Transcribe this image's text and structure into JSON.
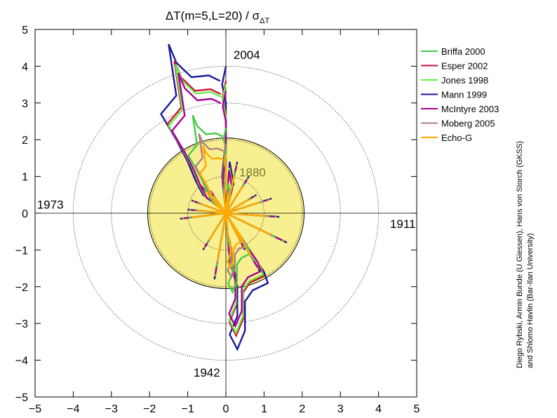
{
  "chart_data": {
    "type": "line",
    "subtype": "polar-radial-plot",
    "title": "ΔT(m=5,L=20) / σ",
    "title_subscript": "ΔT",
    "xlim": [
      -5,
      5
    ],
    "ylim": [
      -5,
      5
    ],
    "xticks": [
      "−5",
      "−4",
      "−3",
      "−2",
      "−1",
      "0",
      "1",
      "2",
      "3",
      "4",
      "5"
    ],
    "yticks": [
      "5",
      "4",
      "3",
      "2",
      "1",
      "0",
      "−1",
      "−2",
      "−3",
      "−4",
      "−5"
    ],
    "reference_circles": [
      1,
      2,
      3,
      4
    ],
    "significance_disc_radius": 2.05,
    "year_labels": [
      {
        "text": "2004",
        "direction": "top"
      },
      {
        "text": "1911",
        "direction": "right"
      },
      {
        "text": "1942",
        "direction": "bottom"
      },
      {
        "text": "1973",
        "direction": "left"
      },
      {
        "text": "1880",
        "direction": "inner"
      }
    ],
    "series": [
      {
        "name": "Briffa 2000",
        "color": "#44cc44",
        "scale": 0.58
      },
      {
        "name": "Esper 2002",
        "color": "#cc1133",
        "scale": 0.9
      },
      {
        "name": "Jones 1998",
        "color": "#66ee44",
        "scale": 0.88
      },
      {
        "name": "Mann 1999",
        "color": "#1a1a99",
        "scale": 1.0
      },
      {
        "name": "McIntyre 2003",
        "color": "#aa0099",
        "scale": 0.83
      },
      {
        "name": "Moberg 2005",
        "color": "#b08080",
        "scale": 0.47
      },
      {
        "name": "Echo-G",
        "color": "#ffaa00",
        "scale": 0.4
      }
    ],
    "envelope": [
      [
        -0.15,
        3.6
      ],
      [
        -0.45,
        3.75
      ],
      [
        -0.9,
        3.7
      ],
      [
        -1.3,
        4.1
      ],
      [
        -1.5,
        4.6
      ],
      [
        -1.4,
        3.9
      ],
      [
        -1.3,
        3.2
      ],
      [
        -1.7,
        2.7
      ],
      [
        -1.3,
        2.0
      ],
      [
        -1.0,
        1.4
      ],
      [
        -0.8,
        0.9
      ],
      [
        -0.6,
        0.5
      ],
      [
        -0.2,
        0.2
      ],
      [
        0,
        0
      ],
      [
        0.05,
        -0.6
      ],
      [
        0.1,
        -1.3
      ],
      [
        0.3,
        -2.0
      ],
      [
        0.3,
        -2.8
      ],
      [
        0.1,
        -3.3
      ],
      [
        0.3,
        -3.7
      ],
      [
        0.5,
        -3.2
      ],
      [
        0.5,
        -2.4
      ],
      [
        0.7,
        -2.1
      ],
      [
        1.1,
        -1.9
      ],
      [
        1.0,
        -1.6
      ],
      [
        0.3,
        -0.5
      ],
      [
        0,
        0
      ],
      [
        0.2,
        0.8
      ],
      [
        0.1,
        1.4
      ],
      [
        0,
        0
      ],
      [
        -0.1,
        1.0
      ],
      [
        0.0,
        2.0
      ],
      [
        0.0,
        3.0
      ],
      [
        -0.1,
        3.5
      ],
      [
        0.0,
        4.0
      ]
    ],
    "spikes": [
      [
        0.3,
        1.4
      ],
      [
        -0.7,
        0.8
      ],
      [
        1.4,
        -0.1
      ],
      [
        1.6,
        -0.8
      ],
      [
        -1.2,
        -0.15
      ],
      [
        -0.9,
        0.35
      ],
      [
        0.8,
        0.5
      ],
      [
        -0.6,
        -1.0
      ],
      [
        0.9,
        -1.6
      ],
      [
        -0.3,
        -1.8
      ],
      [
        1.2,
        0.4
      ],
      [
        -1.0,
        0.1
      ],
      [
        0.5,
        -1.0
      ],
      [
        -0.4,
        0.6
      ],
      [
        0.6,
        1.0
      ]
    ],
    "legend_position": "right"
  },
  "credit": {
    "line1": "Diego Rybski, Armin Bunde (U Giessen), Hans von Storch (GKSS)",
    "line2": "and Shlomo Havlin (Bar-Ilan University)"
  }
}
